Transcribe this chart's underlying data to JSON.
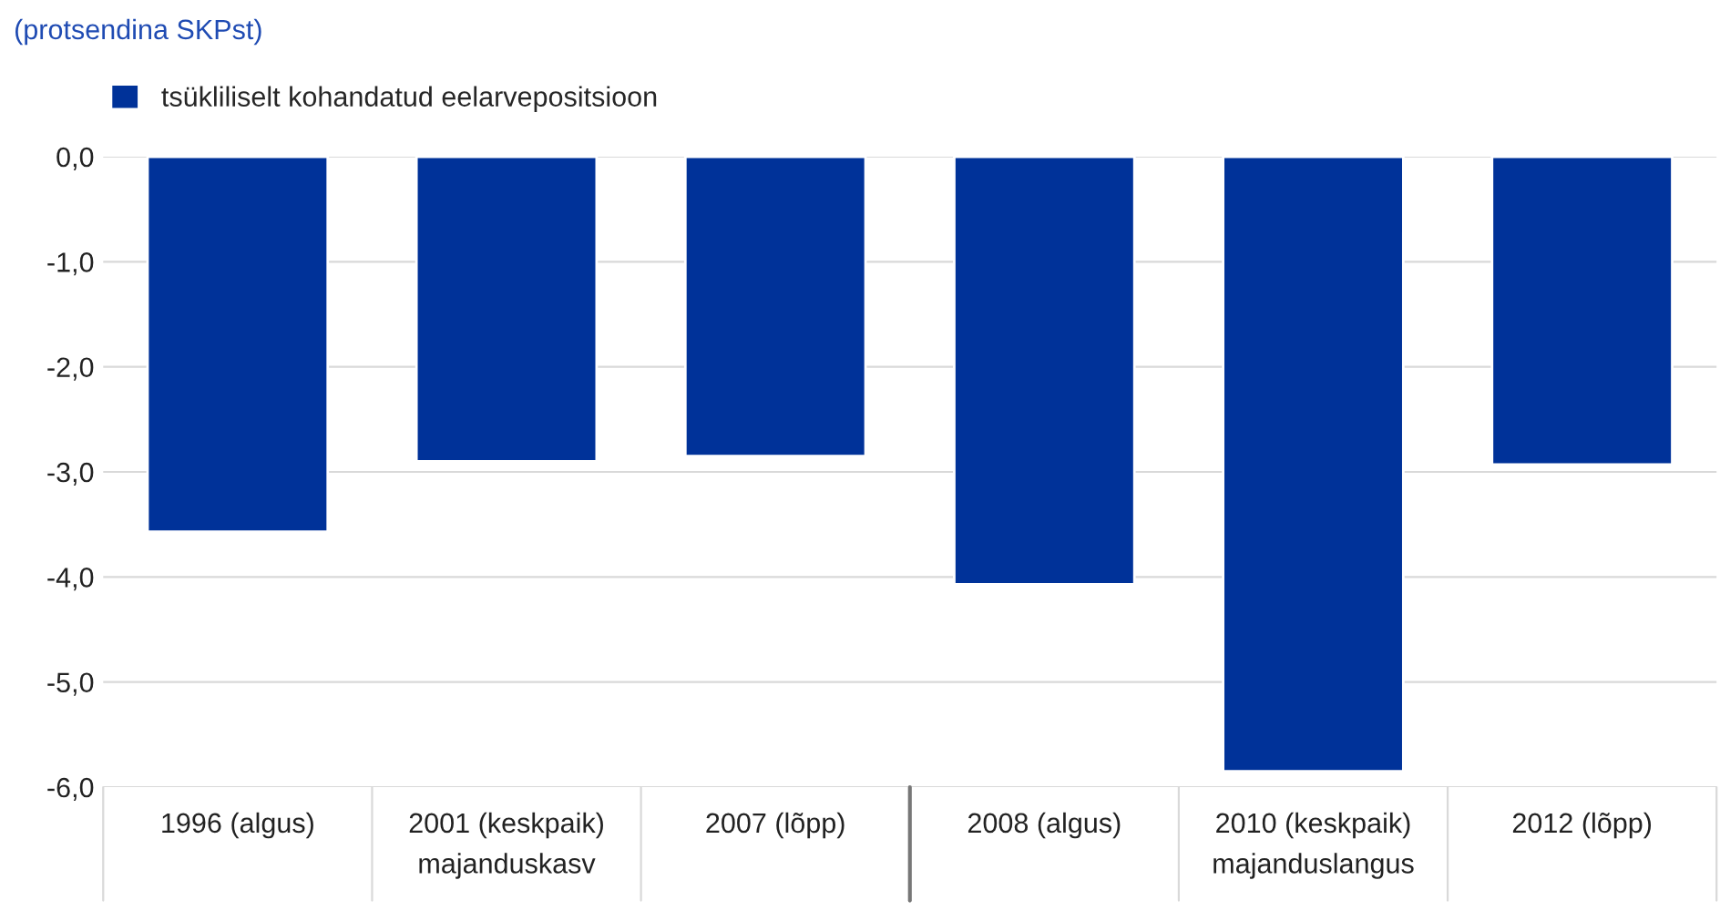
{
  "chart_data": {
    "type": "bar",
    "subtitle": "(protsendina SKPst)",
    "categories": [
      "1996 (algus)",
      "2001 (keskpaik)",
      "2007 (lõpp)",
      "2008 (algus)",
      "2010 (keskpaik)",
      "2012 (lõpp)"
    ],
    "series": [
      {
        "name": "tsükliliselt kohandatud eelarvepositsioon",
        "color": "#003299",
        "values": [
          -3.57,
          -2.9,
          -2.85,
          -4.07,
          -5.85,
          -2.93
        ]
      }
    ],
    "ylim": [
      -6,
      0
    ],
    "yticks": [
      {
        "value": 0,
        "label": "0,0"
      },
      {
        "value": -1,
        "label": "-1,0"
      },
      {
        "value": -2,
        "label": "-2,0"
      },
      {
        "value": -3,
        "label": "-3,0"
      },
      {
        "value": -4,
        "label": "-4,0"
      },
      {
        "value": -5,
        "label": "-5,0"
      },
      {
        "value": -6,
        "label": "-6,0"
      }
    ],
    "annotations": [
      "majanduskasv",
      "majanduslangus"
    ],
    "grid": true,
    "legend": "top left"
  }
}
